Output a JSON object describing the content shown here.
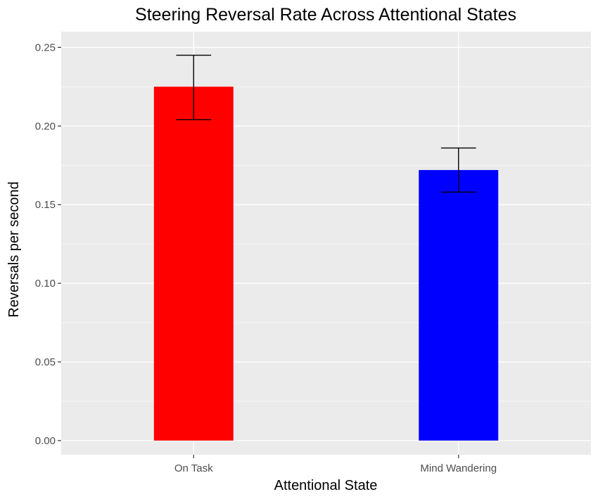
{
  "chart_data": {
    "type": "bar",
    "title": "Steering Reversal Rate Across Attentional States",
    "xlabel": "Attentional State",
    "ylabel": "Reversals per second",
    "categories": [
      "On Task",
      "Mind Wandering"
    ],
    "values": [
      0.225,
      0.172
    ],
    "error_bars": [
      {
        "low": 0.204,
        "high": 0.245
      },
      {
        "low": 0.158,
        "high": 0.186
      }
    ],
    "colors": [
      "#ff0000",
      "#0000ff"
    ],
    "ylim": [
      -0.009,
      0.26
    ],
    "yticks": [
      0.0,
      0.05,
      0.1,
      0.15,
      0.2,
      0.25
    ],
    "ytick_labels": [
      "0.00",
      "0.05",
      "0.10",
      "0.15",
      "0.20",
      "0.25"
    ],
    "panel_background": "#ebebeb",
    "grid_color": "#ffffff",
    "grid": true,
    "legend": "none"
  }
}
